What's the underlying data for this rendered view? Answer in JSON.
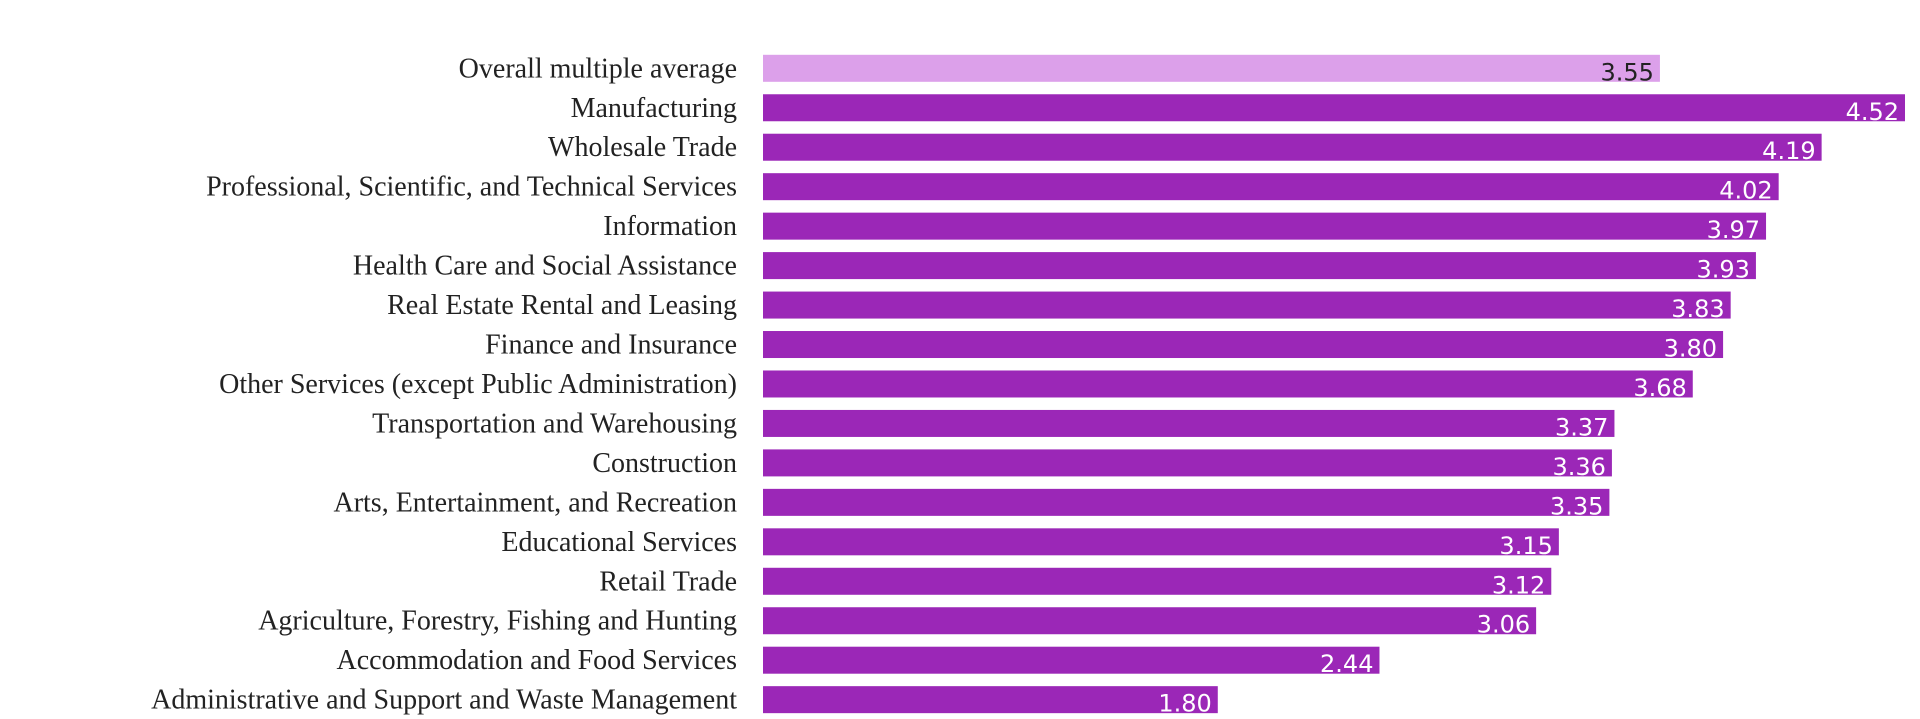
{
  "chart_data": {
    "type": "bar",
    "orientation": "horizontal",
    "categories": [
      "Overall multiple average",
      "Manufacturing",
      "Wholesale Trade",
      "Professional, Scientific, and Technical Services",
      "Information",
      "Health Care and Social Assistance",
      "Real Estate Rental and Leasing",
      "Finance and Insurance",
      "Other Services (except Public Administration)",
      "Transportation and Warehousing",
      "Construction",
      "Arts, Entertainment, and Recreation",
      "Educational Services",
      "Retail Trade",
      "Agriculture, Forestry, Fishing and Hunting",
      "Accommodation and Food Services",
      "Administrative and Support and Waste Management"
    ],
    "values": [
      3.55,
      4.52,
      4.19,
      4.02,
      3.97,
      3.93,
      3.83,
      3.8,
      3.68,
      3.37,
      3.36,
      3.35,
      3.15,
      3.12,
      3.06,
      2.44,
      1.8
    ],
    "value_labels": [
      "3.55",
      "4.52",
      "4.19",
      "4.02",
      "3.97",
      "3.93",
      "3.83",
      "3.80",
      "3.68",
      "3.37",
      "3.36",
      "3.35",
      "3.15",
      "3.12",
      "3.06",
      "2.44",
      "1.80"
    ],
    "colors": [
      "#dca0ea",
      "#9b27b7",
      "#9b27b7",
      "#9b27b7",
      "#9b27b7",
      "#9b27b7",
      "#9b27b7",
      "#9b27b7",
      "#9b27b7",
      "#9b27b7",
      "#9b27b7",
      "#9b27b7",
      "#9b27b7",
      "#9b27b7",
      "#9b27b7",
      "#9b27b7",
      "#9b27b7"
    ],
    "label_colors": [
      "#222222",
      "#ffffff",
      "#ffffff",
      "#ffffff",
      "#ffffff",
      "#ffffff",
      "#ffffff",
      "#ffffff",
      "#ffffff",
      "#ffffff",
      "#ffffff",
      "#ffffff",
      "#ffffff",
      "#ffffff",
      "#ffffff",
      "#ffffff",
      "#ffffff"
    ]
  }
}
